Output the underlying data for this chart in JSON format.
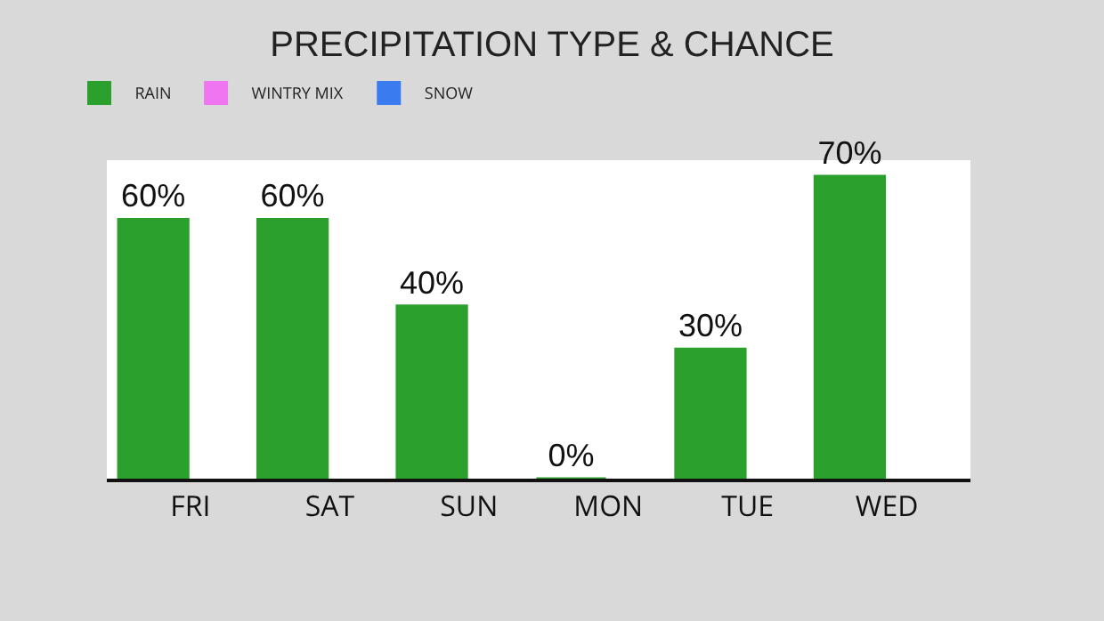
{
  "chart_data": {
    "type": "bar",
    "title": "PRECIPITATION TYPE & CHANCE",
    "categories": [
      "FRI",
      "SAT",
      "SUN",
      "MON",
      "TUE",
      "WED"
    ],
    "series": [
      {
        "name": "RAIN",
        "color": "#2ca02c",
        "values": [
          60,
          60,
          40,
          0,
          30,
          70
        ],
        "value_labels": [
          "60%",
          "60%",
          "40%",
          "0%",
          "30%",
          "70%"
        ]
      },
      {
        "name": "WINTRY MIX",
        "color": "#f075f0",
        "values": [
          null,
          null,
          null,
          null,
          null,
          null
        ]
      },
      {
        "name": "SNOW",
        "color": "#3a7cf0",
        "values": [
          null,
          null,
          null,
          null,
          null,
          null
        ]
      }
    ],
    "legend": "top left"
  }
}
